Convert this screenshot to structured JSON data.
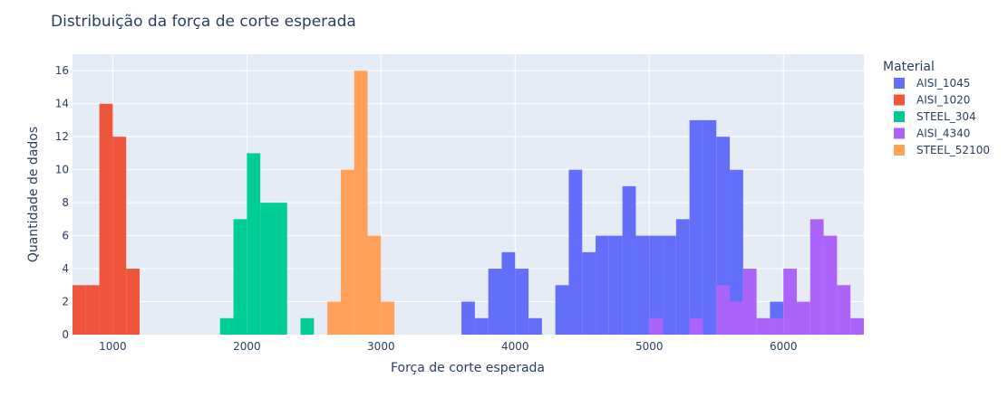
{
  "chart_data": {
    "type": "bar",
    "title": "Distribuição da força de corte esperada",
    "xlabel": "Força de corte esperada",
    "ylabel": "Quantidade de dados",
    "xlim": [
      700,
      6600
    ],
    "ylim": [
      0,
      17
    ],
    "bin_width": 100,
    "x_ticks": [
      1000,
      2000,
      3000,
      4000,
      5000,
      6000
    ],
    "y_ticks": [
      0,
      2,
      4,
      6,
      8,
      10,
      12,
      14,
      16
    ],
    "grid": true,
    "barmode": "overlay",
    "legend_title": "Material",
    "legend_position": "right",
    "series": [
      {
        "name": "AISI_1045",
        "color": "#636efa",
        "bins": [
          [
            3600,
            2
          ],
          [
            3700,
            1
          ],
          [
            3800,
            4
          ],
          [
            3900,
            5
          ],
          [
            4000,
            4
          ],
          [
            4100,
            1
          ],
          [
            4300,
            3
          ],
          [
            4400,
            10
          ],
          [
            4500,
            5
          ],
          [
            4600,
            6
          ],
          [
            4700,
            6
          ],
          [
            4800,
            9
          ],
          [
            4900,
            6
          ],
          [
            5000,
            6
          ],
          [
            5100,
            6
          ],
          [
            5200,
            7
          ],
          [
            5300,
            13
          ],
          [
            5400,
            13
          ],
          [
            5500,
            12
          ],
          [
            5600,
            10
          ],
          [
            5900,
            2
          ]
        ]
      },
      {
        "name": "AISI_1020",
        "color": "#ef553b",
        "bins": [
          [
            700,
            3
          ],
          [
            800,
            3
          ],
          [
            900,
            14
          ],
          [
            1000,
            12
          ],
          [
            1100,
            4
          ]
        ]
      },
      {
        "name": "STEEL_304",
        "color": "#00cc96",
        "bins": [
          [
            1800,
            1
          ],
          [
            1900,
            7
          ],
          [
            2000,
            11
          ],
          [
            2100,
            8
          ],
          [
            2200,
            8
          ],
          [
            2400,
            1
          ]
        ]
      },
      {
        "name": "AISI_4340",
        "color": "#ab63fa",
        "bins": [
          [
            5000,
            1
          ],
          [
            5300,
            1
          ],
          [
            5500,
            3
          ],
          [
            5600,
            2
          ],
          [
            5700,
            4
          ],
          [
            5800,
            1
          ],
          [
            5900,
            1
          ],
          [
            6000,
            4
          ],
          [
            6100,
            2
          ],
          [
            6200,
            7
          ],
          [
            6300,
            6
          ],
          [
            6400,
            3
          ],
          [
            6500,
            1
          ]
        ]
      },
      {
        "name": "STEEL_52100",
        "color": "#ffa15a",
        "bins": [
          [
            2600,
            2
          ],
          [
            2700,
            10
          ],
          [
            2800,
            16
          ],
          [
            2900,
            6
          ],
          [
            3000,
            2
          ]
        ]
      }
    ]
  }
}
